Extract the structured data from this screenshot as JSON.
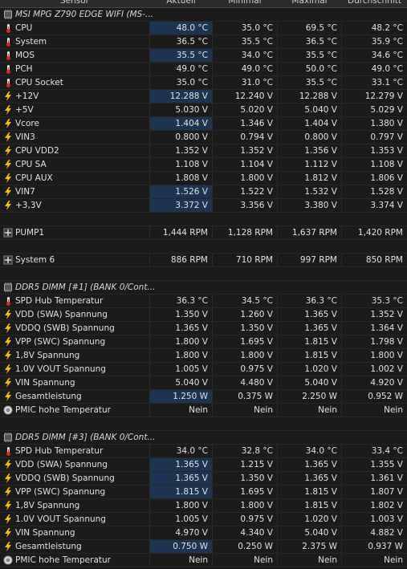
{
  "table": {
    "columns": [
      "Sensor",
      "Aktuell",
      "Minimal",
      "Maximal",
      "Durchschnitt"
    ],
    "rows": [
      {
        "group": "MSI MPG Z790 EDGE WIFI (MS-..."
      },
      {
        "icon": "temp",
        "highlight": true,
        "cells": [
          "CPU",
          "48.0 °C",
          "35.0 °C",
          "69.5 °C",
          "48.2 °C"
        ]
      },
      {
        "icon": "temp",
        "cells": [
          "System",
          "36.5 °C",
          "35.5 °C",
          "36.5 °C",
          "35.9 °C"
        ]
      },
      {
        "icon": "temp",
        "highlight": true,
        "cells": [
          "MOS",
          "35.5 °C",
          "34.0 °C",
          "35.5 °C",
          "34.6 °C"
        ]
      },
      {
        "icon": "temp",
        "cells": [
          "PCH",
          "49.0 °C",
          "49.0 °C",
          "50.0 °C",
          "49.0 °C"
        ]
      },
      {
        "icon": "temp",
        "cells": [
          "CPU Socket",
          "35.0 °C",
          "31.0 °C",
          "35.5 °C",
          "33.1 °C"
        ]
      },
      {
        "icon": "volt",
        "highlight": true,
        "cells": [
          "+12V",
          "12.288 V",
          "12.240 V",
          "12.288 V",
          "12.279 V"
        ]
      },
      {
        "icon": "volt",
        "cells": [
          "+5V",
          "5.030 V",
          "5.020 V",
          "5.040 V",
          "5.029 V"
        ]
      },
      {
        "icon": "volt",
        "highlight": true,
        "cells": [
          "Vcore",
          "1.404 V",
          "1.346 V",
          "1.404 V",
          "1.380 V"
        ]
      },
      {
        "icon": "volt",
        "cells": [
          "VIN3",
          "0.800 V",
          "0.794 V",
          "0.800 V",
          "0.797 V"
        ]
      },
      {
        "icon": "volt",
        "cells": [
          "CPU VDD2",
          "1.352 V",
          "1.352 V",
          "1.356 V",
          "1.353 V"
        ]
      },
      {
        "icon": "volt",
        "cells": [
          "CPU SA",
          "1.108 V",
          "1.104 V",
          "1.112 V",
          "1.108 V"
        ]
      },
      {
        "icon": "volt",
        "cells": [
          "CPU AUX",
          "1.808 V",
          "1.800 V",
          "1.812 V",
          "1.806 V"
        ]
      },
      {
        "icon": "volt",
        "highlight": true,
        "cells": [
          "VIN7",
          "1.526 V",
          "1.522 V",
          "1.532 V",
          "1.528 V"
        ]
      },
      {
        "icon": "volt",
        "highlight": true,
        "cells": [
          "+3,3V",
          "3.372 V",
          "3.356 V",
          "3.380 V",
          "3.374 V"
        ]
      },
      null,
      {
        "icon": "fan",
        "cells": [
          "PUMP1",
          "1,444 RPM",
          "1,128 RPM",
          "1,637 RPM",
          "1,420 RPM"
        ]
      },
      null,
      {
        "icon": "fan",
        "cells": [
          "System 6",
          "886 RPM",
          "710 RPM",
          "997 RPM",
          "850 RPM"
        ]
      },
      null,
      {
        "group": "DDR5 DIMM [#1] (BANK 0/Cont..."
      },
      {
        "icon": "temp",
        "cells": [
          "SPD Hub Temperatur",
          "36.3 °C",
          "34.5 °C",
          "36.3 °C",
          "35.3 °C"
        ]
      },
      {
        "icon": "volt",
        "cells": [
          "VDD (SWA) Spannung",
          "1.350 V",
          "1.260 V",
          "1.365 V",
          "1.352 V"
        ]
      },
      {
        "icon": "volt",
        "cells": [
          "VDDQ (SWB) Spannung",
          "1.365 V",
          "1.350 V",
          "1.365 V",
          "1.364 V"
        ]
      },
      {
        "icon": "volt",
        "cells": [
          "VPP (SWC) Spannung",
          "1.800 V",
          "1.695 V",
          "1.815 V",
          "1.798 V"
        ]
      },
      {
        "icon": "volt",
        "cells": [
          "1,8V Spannung",
          "1.800 V",
          "1.800 V",
          "1.815 V",
          "1.800 V"
        ]
      },
      {
        "icon": "volt",
        "cells": [
          "1.0V VOUT Spannung",
          "1.005 V",
          "0.975 V",
          "1.020 V",
          "1.002 V"
        ]
      },
      {
        "icon": "volt",
        "cells": [
          "VIN Spannung",
          "5.040 V",
          "4.480 V",
          "5.040 V",
          "4.920 V"
        ]
      },
      {
        "icon": "volt",
        "highlight": true,
        "cells": [
          "Gesamtleistung",
          "1.250 W",
          "0.375 W",
          "2.250 W",
          "0.952 W"
        ]
      },
      {
        "icon": "flag",
        "cells": [
          "PMIC hohe Temperatur",
          "Nein",
          "Nein",
          "Nein",
          "Nein"
        ]
      },
      null,
      {
        "group": "DDR5 DIMM [#3] (BANK 0/Cont..."
      },
      {
        "icon": "temp",
        "cells": [
          "SPD Hub Temperatur",
          "34.0 °C",
          "32.8 °C",
          "34.0 °C",
          "33.4 °C"
        ]
      },
      {
        "icon": "volt",
        "highlight": true,
        "cells": [
          "VDD (SWA) Spannung",
          "1.365 V",
          "1.215 V",
          "1.365 V",
          "1.355 V"
        ]
      },
      {
        "icon": "volt",
        "highlight": true,
        "cells": [
          "VDDQ (SWB) Spannung",
          "1.365 V",
          "1.350 V",
          "1.365 V",
          "1.361 V"
        ]
      },
      {
        "icon": "volt",
        "highlight": true,
        "cells": [
          "VPP (SWC) Spannung",
          "1.815 V",
          "1.695 V",
          "1.815 V",
          "1.807 V"
        ]
      },
      {
        "icon": "volt",
        "cells": [
          "1,8V Spannung",
          "1.800 V",
          "1.800 V",
          "1.815 V",
          "1.802 V"
        ]
      },
      {
        "icon": "volt",
        "cells": [
          "1.0V VOUT Spannung",
          "1.005 V",
          "0.975 V",
          "1.020 V",
          "1.003 V"
        ]
      },
      {
        "icon": "volt",
        "cells": [
          "VIN Spannung",
          "4.970 V",
          "4.340 V",
          "5.040 V",
          "4.882 V"
        ]
      },
      {
        "icon": "volt",
        "highlight": true,
        "cells": [
          "Gesamtleistung",
          "0.750 W",
          "0.250 W",
          "2.375 W",
          "0.937 W"
        ]
      },
      {
        "icon": "flag",
        "cells": [
          "PMIC hohe Temperatur",
          "Nein",
          "Nein",
          "Nein",
          "Nein"
        ]
      }
    ]
  }
}
